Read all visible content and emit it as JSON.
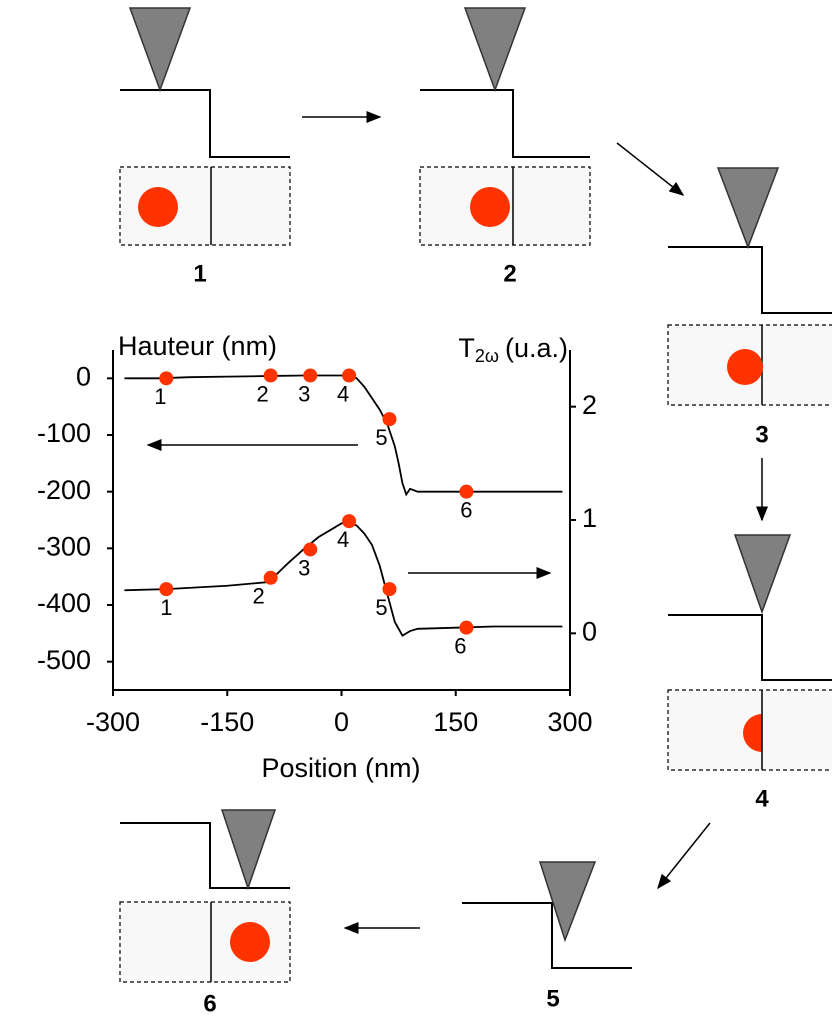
{
  "chart_data": {
    "type": "line",
    "ylabel": "Hauteur (nm)",
    "y2label": [
      "T",
      "2ω",
      "(u.a.)"
    ],
    "xlabel": "Position (nm)",
    "xlim": [
      -300,
      300
    ],
    "xticks": [
      -300,
      -150,
      0,
      150,
      300
    ],
    "ylim": [
      -550,
      50
    ],
    "yticks": [
      0,
      -100,
      -200,
      -300,
      -400,
      -500
    ],
    "y2lim": [
      -0.5,
      2.5
    ],
    "y2ticks": [
      0,
      1,
      2
    ],
    "series": [
      {
        "axis": "y",
        "color": "#000000",
        "x": [
          -285,
          -240,
          -200,
          -150,
          -100,
          -50,
          0,
          10,
          20,
          30,
          40,
          50,
          60,
          70,
          75,
          80,
          85,
          90,
          100,
          120,
          150,
          200,
          250,
          290
        ],
        "values": [
          0,
          0,
          2,
          3,
          4,
          5,
          5,
          4,
          0,
          -15,
          -35,
          -55,
          -80,
          -120,
          -150,
          -185,
          -205,
          -195,
          -200,
          -200,
          -200,
          -200,
          -200,
          -200
        ],
        "markers": {
          "color": "#ff3300",
          "x": [
            -230,
            -93,
            -41,
            10,
            63,
            164
          ],
          "values": [
            0,
            5,
            5,
            5,
            -72,
            -200
          ],
          "labels": [
            "1",
            "2",
            "3",
            "4",
            "5",
            "6"
          ]
        }
      },
      {
        "axis": "y2",
        "color": "#000000",
        "x": [
          -285,
          -230,
          -150,
          -100,
          -90,
          -70,
          -50,
          -30,
          -10,
          0,
          10,
          20,
          30,
          40,
          50,
          60,
          70,
          80,
          90,
          100,
          150,
          200,
          250,
          290
        ],
        "values": [
          0.38,
          0.39,
          0.42,
          0.45,
          0.49,
          0.62,
          0.74,
          0.85,
          0.93,
          0.97,
          0.98,
          0.95,
          0.88,
          0.78,
          0.6,
          0.35,
          0.1,
          -0.02,
          0.02,
          0.04,
          0.05,
          0.06,
          0.06,
          0.06
        ],
        "markers": {
          "color": "#ff3300",
          "x": [
            -230,
            -93,
            -41,
            10,
            63,
            164
          ],
          "values": [
            0.39,
            0.49,
            0.74,
            0.99,
            0.39,
            0.05
          ],
          "labels": [
            "1",
            "2",
            "3",
            "4",
            "5",
            "6"
          ]
        }
      }
    ]
  },
  "diagram": {
    "panels": [
      "1",
      "2",
      "3",
      "4",
      "5",
      "6"
    ]
  }
}
